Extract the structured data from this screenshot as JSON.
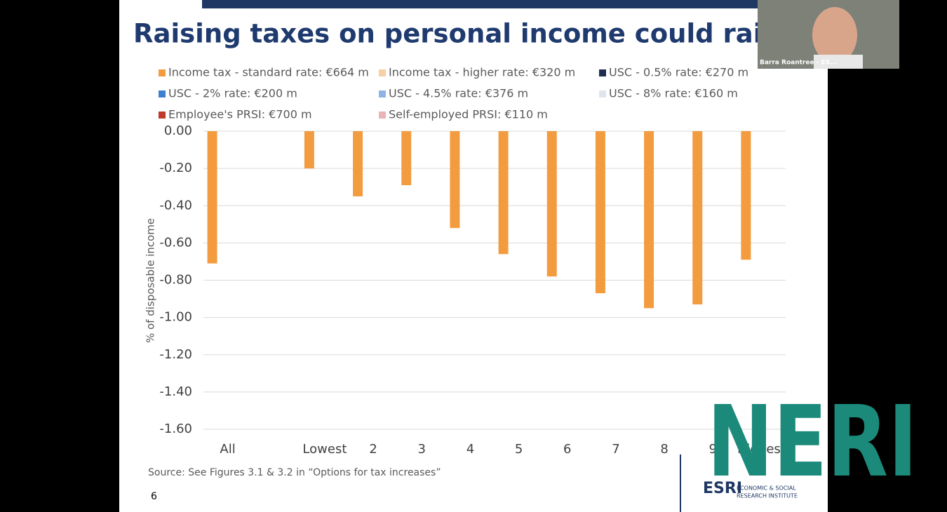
{
  "header": {
    "title": "Raising taxes on personal income could raise €€"
  },
  "chart_data": {
    "type": "bar",
    "y_label": "% of disposable income",
    "categories": [
      "All",
      null,
      "Lowest",
      "2",
      "3",
      "4",
      "5",
      "6",
      "7",
      "8",
      "9",
      "Highest"
    ],
    "series": [
      {
        "name": "Income tax - standard rate: €664 m",
        "color": "#f39c3f",
        "values": [
          -0.71,
          null,
          -0.2,
          -0.35,
          -0.29,
          -0.52,
          -0.66,
          -0.78,
          -0.87,
          -0.95,
          -0.93,
          -0.69
        ]
      },
      {
        "name": "Income tax - higher rate: €320 m",
        "color": "#f8cfa3"
      },
      {
        "name": "USC - 0.5% rate: €270 m",
        "color": "#1f2d4e"
      },
      {
        "name": "USC - 2% rate: €200 m",
        "color": "#3f7fcf"
      },
      {
        "name": "USC - 4.5% rate: €376 m",
        "color": "#8fb4e3"
      },
      {
        "name": "USC - 8% rate: €160 m",
        "color": "#dfe5ec"
      },
      {
        "name": "Employee's PRSI: €700 m",
        "color": "#c0392b"
      },
      {
        "name": "Self-employed PRSI: €110 m",
        "color": "#e8b4b4"
      }
    ],
    "ylim": [
      -1.6,
      0
    ],
    "yticks": [
      {
        "value": 0,
        "label": "0.00"
      },
      {
        "value": -0.2,
        "label": "-0.20"
      },
      {
        "value": -0.4,
        "label": "-0.40"
      },
      {
        "value": -0.6,
        "label": "-0.60"
      },
      {
        "value": -0.8,
        "label": "-0.80"
      },
      {
        "value": -1.0,
        "label": "-1.00"
      },
      {
        "value": -1.2,
        "label": "-1.20"
      },
      {
        "value": -1.4,
        "label": "-1.40"
      },
      {
        "value": -1.6,
        "label": "-1.60"
      }
    ],
    "grid": true,
    "legend": "top"
  },
  "footer": {
    "source": "Source:  See Figures 3.1 & 3.2 in “Options for tax increases”",
    "page_number": "6"
  },
  "overlays": {
    "webcam_label": "Barra Roantree - ES...",
    "logo_neri": "NERI",
    "logo_esri": "ESRI",
    "esri_line1": "ECONOMIC & SOCIAL",
    "esri_line2": "RESEARCH INSTITUTE"
  }
}
